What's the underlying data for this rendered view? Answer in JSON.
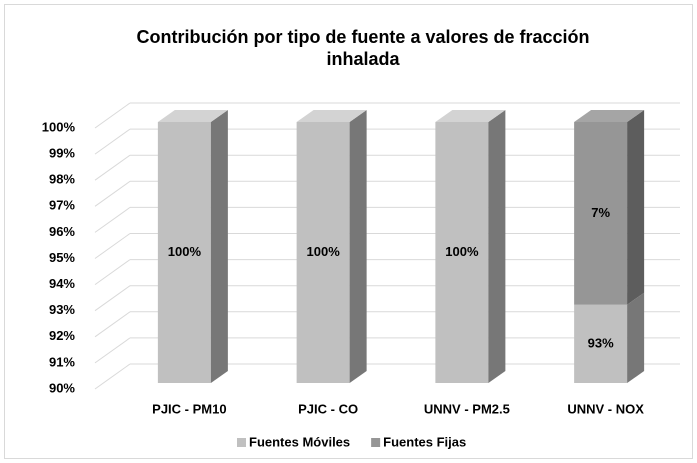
{
  "chart_data": {
    "type": "bar3d_stacked",
    "title": "Contribución por tipo de fuente a valores de fracción inhalada",
    "categories": [
      "PJIC - PM10",
      "PJIC - CO",
      "UNNV - PM2.5",
      "UNNV - NOX"
    ],
    "series": [
      {
        "name": "Fuentes Móviles",
        "color": "#c0c0c0",
        "values": [
          100,
          100,
          100,
          93
        ],
        "value_labels": [
          "100%",
          "100%",
          "100%",
          "93%"
        ]
      },
      {
        "name": "Fuentes Fijas",
        "color": "#969696",
        "values": [
          0,
          0,
          0,
          7
        ],
        "value_labels": [
          null,
          null,
          null,
          "7%"
        ]
      }
    ],
    "ylim": [
      90,
      100
    ],
    "yticks": [
      {
        "value": 90,
        "label": "90%"
      },
      {
        "value": 91,
        "label": "91%"
      },
      {
        "value": 92,
        "label": "92%"
      },
      {
        "value": 93,
        "label": "93%"
      },
      {
        "value": 94,
        "label": "94%"
      },
      {
        "value": 95,
        "label": "95%"
      },
      {
        "value": 96,
        "label": "96%"
      },
      {
        "value": 97,
        "label": "97%"
      },
      {
        "value": 98,
        "label": "98%"
      },
      {
        "value": 99,
        "label": "99%"
      },
      {
        "value": 100,
        "label": "100%"
      }
    ],
    "grid": true,
    "legend": "bottom"
  }
}
